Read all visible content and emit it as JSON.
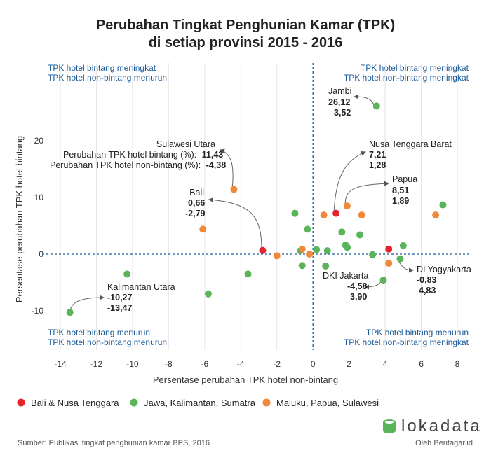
{
  "chart_data": {
    "type": "scatter",
    "title_lines": [
      "Perubahan Tingkat Penghunian Kamar (TPK)",
      "di setiap provinsi 2015 - 2016"
    ],
    "xlabel": "Persentase perubahan TPK hotel non-bintang",
    "ylabel": "Persentase perubahan TPK hotel bintang",
    "xlim": [
      -14.5,
      8.5
    ],
    "ylim": [
      -11.5,
      32
    ],
    "xticks": [
      -14,
      -12,
      -10,
      -8,
      -6,
      -4,
      -2,
      0,
      2,
      4,
      6,
      8
    ],
    "yticks": [
      -10,
      0,
      10,
      20
    ],
    "grid": "vertical",
    "legend_position": "bottom",
    "quadrant_labels": {
      "top_left": [
        "TPK hotel bintang meningkat",
        "TPK hotel non-bintang menurun"
      ],
      "top_right": [
        "TPK hotel bintang meningkat",
        "TPK hotel non-bintang meningkat"
      ],
      "bottom_left": [
        "TPK hotel bintang menurun",
        "TPK hotel non-bintang menurun"
      ],
      "bottom_right": [
        "TPK hotel bintang menurun",
        "TPK hotel non-bintang meningkat"
      ]
    },
    "series": [
      {
        "name": "Bali & Nusa Tenggara",
        "color": "#e3262e",
        "points": [
          {
            "x": -2.79,
            "y": 0.66
          },
          {
            "x": 1.28,
            "y": 7.21
          },
          {
            "x": 4.2,
            "y": 0.9
          }
        ]
      },
      {
        "name": "Jawa, Kalimantan, Sumatra",
        "color": "#5ab45a",
        "points": [
          {
            "x": 3.52,
            "y": 26.12
          },
          {
            "x": -13.47,
            "y": -10.27
          },
          {
            "x": -10.3,
            "y": -3.5
          },
          {
            "x": -5.8,
            "y": -7.0
          },
          {
            "x": -3.6,
            "y": -3.5
          },
          {
            "x": -1.0,
            "y": 7.2
          },
          {
            "x": -0.3,
            "y": 4.4
          },
          {
            "x": -0.6,
            "y": -2.0
          },
          {
            "x": -0.7,
            "y": 0.6
          },
          {
            "x": 0.2,
            "y": 0.8
          },
          {
            "x": 0.8,
            "y": 0.6
          },
          {
            "x": 0.7,
            "y": -2.1
          },
          {
            "x": 1.6,
            "y": 3.9
          },
          {
            "x": 1.8,
            "y": 1.6
          },
          {
            "x": 1.9,
            "y": 1.2
          },
          {
            "x": 2.6,
            "y": 3.4
          },
          {
            "x": 3.3,
            "y": -0.1
          },
          {
            "x": 3.9,
            "y": -4.58
          },
          {
            "x": 4.83,
            "y": -0.83
          },
          {
            "x": 5.0,
            "y": 1.5
          },
          {
            "x": 7.2,
            "y": 8.7
          }
        ]
      },
      {
        "name": "Maluku, Papua, Sulawesi",
        "color": "#f0893a",
        "points": [
          {
            "x": -4.38,
            "y": 11.43
          },
          {
            "x": -6.1,
            "y": 4.4
          },
          {
            "x": -2.0,
            "y": -0.3
          },
          {
            "x": -0.6,
            "y": 0.9
          },
          {
            "x": -0.2,
            "y": 0.0
          },
          {
            "x": 0.6,
            "y": 6.9
          },
          {
            "x": 1.89,
            "y": 8.51
          },
          {
            "x": 2.7,
            "y": 6.9
          },
          {
            "x": 4.2,
            "y": -1.6
          },
          {
            "x": 6.8,
            "y": 6.9
          }
        ]
      }
    ],
    "annotations": [
      {
        "name": "Jambi",
        "values": [
          "26,12",
          "3,52"
        ]
      },
      {
        "name": "Sulawesi Utara",
        "lines": [
          "Perubahan TPK hotel bintang (%):",
          "Perubahan TPK hotel non-bintang (%):"
        ],
        "values": [
          "11,43",
          "-4,38"
        ]
      },
      {
        "name": "Nusa Tenggara Barat",
        "values": [
          "7,21",
          "1,28"
        ]
      },
      {
        "name": "Papua",
        "values": [
          "8,51",
          "1,89"
        ]
      },
      {
        "name": "Bali",
        "values": [
          "0,66",
          "-2,79"
        ]
      },
      {
        "name": "DI Yogyakarta",
        "values": [
          "-0,83",
          "4,83"
        ]
      },
      {
        "name": "DKI Jakarta",
        "values": [
          "-4,58",
          "3,90"
        ]
      },
      {
        "name": "Kalimantan Utara",
        "values": [
          "-10,27",
          "-13,47"
        ]
      }
    ],
    "source": "Sumber:  Publikasi tingkat penghunian kamar BPS, 2016"
  },
  "brand": {
    "name": "lokadata",
    "sub": "Oleh Beritagar.id",
    "color": "#5ab45a"
  }
}
